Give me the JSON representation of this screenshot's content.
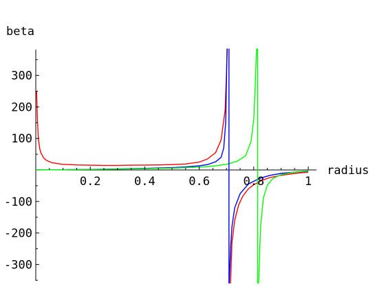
{
  "chart_data": {
    "type": "line",
    "title": "",
    "xlabel": "radius",
    "ylabel": "beta",
    "xlim": [
      0,
      1.0
    ],
    "ylim": [
      -360,
      385
    ],
    "x_ticks": [
      0.2,
      0.4,
      0.6,
      0.8,
      1
    ],
    "x_tick_labels": [
      "0.2",
      "0.4",
      "0.6",
      "0.8",
      "1"
    ],
    "y_ticks": [
      -300,
      -200,
      -100,
      100,
      200,
      300
    ],
    "y_tick_labels": [
      "-300",
      "-200",
      "-100",
      "100",
      "200",
      "300"
    ],
    "grid": false,
    "series": [
      {
        "color": "#ff0000",
        "x": [
          0.003,
          0.006,
          0.01,
          0.015,
          0.02,
          0.03,
          0.04,
          0.06,
          0.08,
          0.1,
          0.15,
          0.2,
          0.25,
          0.3,
          0.35,
          0.4,
          0.45,
          0.5,
          0.55,
          0.6,
          0.63,
          0.66,
          0.68,
          0.695,
          0.703
        ],
        "y": [
          250,
          155,
          95,
          66,
          52,
          37,
          30,
          23,
          20,
          18,
          16,
          15,
          14.5,
          14.5,
          15,
          15.5,
          16,
          17,
          19,
          25,
          35,
          55,
          95,
          190,
          385
        ],
        "x2": [
          0.715,
          0.72,
          0.73,
          0.745,
          0.76,
          0.78,
          0.8,
          0.83,
          0.86,
          0.9,
          0.95,
          1.0
        ],
        "y2": [
          -360,
          -230,
          -160,
          -110,
          -83,
          -60,
          -47,
          -33,
          -24,
          -17,
          -11,
          -7
        ]
      },
      {
        "color": "#0000ff",
        "x": [
          0.0,
          0.1,
          0.2,
          0.3,
          0.4,
          0.5,
          0.55,
          0.6,
          0.63,
          0.66,
          0.68,
          0.69,
          0.697,
          0.702
        ],
        "y": [
          0.3,
          0.8,
          1.8,
          3,
          5,
          7.5,
          9.5,
          13,
          17,
          26,
          40,
          70,
          150,
          385
        ],
        "x2": [
          0.71,
          0.715,
          0.72,
          0.73,
          0.75,
          0.78,
          0.82,
          0.86,
          0.9,
          0.95,
          1.0
        ],
        "y2": [
          -360,
          -250,
          -180,
          -120,
          -75,
          -45,
          -27,
          -17,
          -11,
          -7,
          -4
        ]
      },
      {
        "color": "#00ff00",
        "x": [
          0.0,
          0.1,
          0.2,
          0.3,
          0.4,
          0.5,
          0.6,
          0.65,
          0.7,
          0.74,
          0.77,
          0.79,
          0.8,
          0.805,
          0.81
        ],
        "y": [
          0.2,
          0.7,
          1.6,
          2.6,
          4,
          6,
          9,
          12,
          18,
          28,
          45,
          90,
          160,
          260,
          385
        ],
        "x2": [
          0.818,
          0.825,
          0.835,
          0.85,
          0.87,
          0.9,
          0.94,
          0.97,
          1.0
        ],
        "y2": [
          -360,
          -180,
          -90,
          -48,
          -27,
          -15,
          -8,
          -5,
          -3
        ]
      }
    ],
    "vertical_lines": [
      {
        "color": "#0000ff",
        "x": 0.709
      },
      {
        "color": "#00ff00",
        "x": 0.814
      }
    ]
  }
}
